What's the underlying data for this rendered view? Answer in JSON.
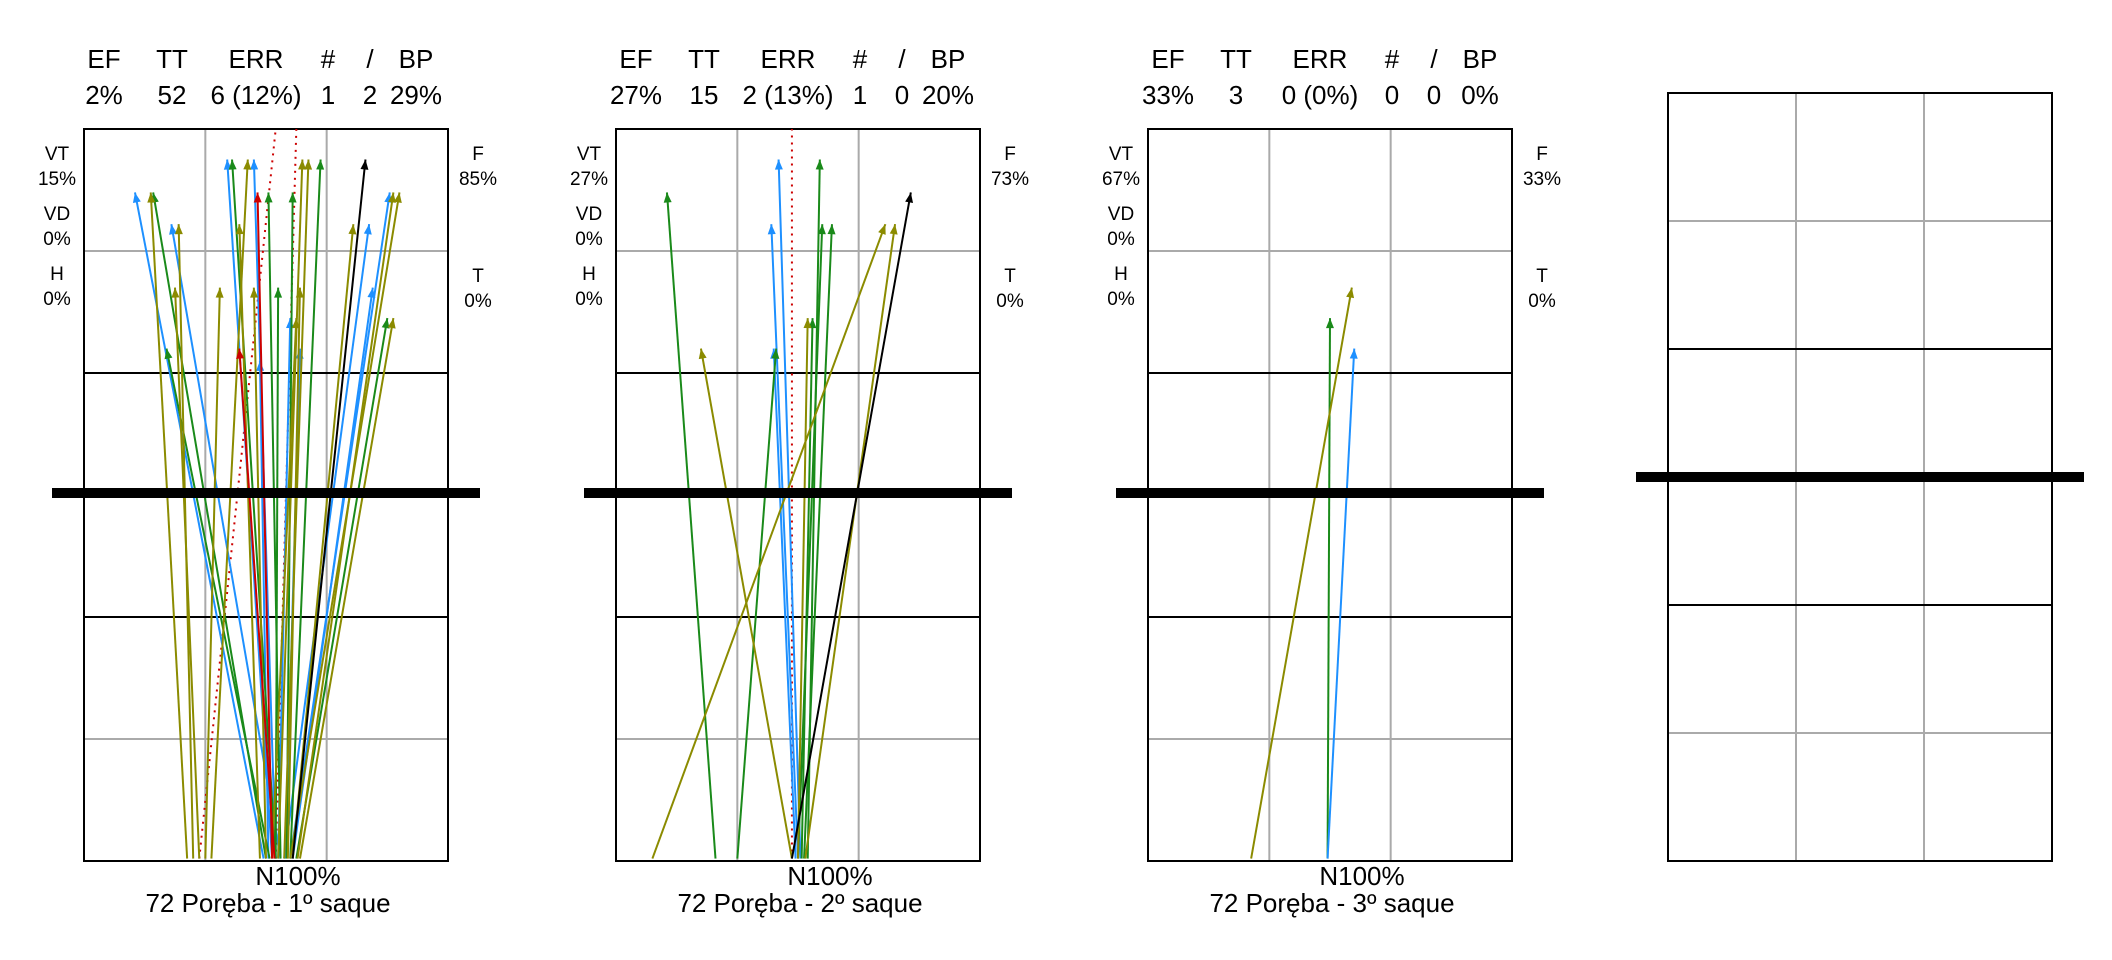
{
  "colors": {
    "blue": "#1e90ff",
    "green": "#1a8a1a",
    "olive": "#8b8b00",
    "black": "#000000",
    "red": "#cc0000",
    "grid": "#aaaaaa"
  },
  "header_labels": [
    "EF",
    "TT",
    "ERR",
    "#",
    "/",
    "BP"
  ],
  "side_labels": [
    "VT",
    "VD",
    "H",
    "F",
    "T"
  ],
  "chart_data": [
    {
      "type": "trajectory",
      "title": "72 Poręba  - 1º saque",
      "bottom_label": "N100%",
      "stats": {
        "EF": "2%",
        "TT": "52",
        "ERR": "6 (12%)",
        "#": "1",
        "/": "2",
        "BP": "29%"
      },
      "side": {
        "VT": "15%",
        "VD": "0%",
        "H": "0%",
        "F": "85%",
        "T": "0%"
      },
      "arrows": [
        {
          "c": "blue",
          "from": [
            1.48,
            5.98
          ],
          "to": [
            0.42,
            0.52
          ]
        },
        {
          "c": "blue",
          "from": [
            1.55,
            5.98
          ],
          "to": [
            1.18,
            0.25
          ]
        },
        {
          "c": "blue",
          "from": [
            1.58,
            5.98
          ],
          "to": [
            1.4,
            0.25
          ]
        },
        {
          "c": "blue",
          "from": [
            1.62,
            5.98
          ],
          "to": [
            0.72,
            0.78
          ]
        },
        {
          "c": "blue",
          "from": [
            1.65,
            5.98
          ],
          "to": [
            2.35,
            0.78
          ]
        },
        {
          "c": "blue",
          "from": [
            1.7,
            5.98
          ],
          "to": [
            2.52,
            0.52
          ]
        },
        {
          "c": "blue",
          "from": [
            1.72,
            5.98
          ],
          "to": [
            2.38,
            1.3
          ]
        },
        {
          "c": "blue",
          "from": [
            1.6,
            5.98
          ],
          "to": [
            1.7,
            1.55
          ]
        },
        {
          "c": "blue",
          "from": [
            1.66,
            5.98
          ],
          "to": [
            1.78,
            1.8
          ]
        },
        {
          "c": "blue",
          "from": [
            1.52,
            5.98
          ],
          "to": [
            1.45,
            1.9
          ]
        },
        {
          "c": "green",
          "from": [
            1.5,
            5.98
          ],
          "to": [
            0.57,
            0.52
          ]
        },
        {
          "c": "green",
          "from": [
            1.53,
            5.98
          ],
          "to": [
            0.68,
            1.8
          ]
        },
        {
          "c": "green",
          "from": [
            1.58,
            5.98
          ],
          "to": [
            1.22,
            0.25
          ]
        },
        {
          "c": "green",
          "from": [
            1.62,
            5.98
          ],
          "to": [
            1.52,
            0.52
          ]
        },
        {
          "c": "green",
          "from": [
            1.67,
            5.98
          ],
          "to": [
            1.72,
            0.52
          ]
        },
        {
          "c": "green",
          "from": [
            1.7,
            5.98
          ],
          "to": [
            1.95,
            0.25
          ]
        },
        {
          "c": "green",
          "from": [
            1.75,
            5.98
          ],
          "to": [
            2.5,
            1.55
          ]
        },
        {
          "c": "green",
          "from": [
            1.58,
            5.98
          ],
          "to": [
            1.6,
            1.3
          ]
        },
        {
          "c": "olive",
          "from": [
            0.85,
            5.98
          ],
          "to": [
            0.55,
            0.52
          ]
        },
        {
          "c": "olive",
          "from": [
            0.9,
            5.98
          ],
          "to": [
            0.78,
            0.78
          ]
        },
        {
          "c": "olive",
          "from": [
            0.95,
            5.98
          ],
          "to": [
            0.75,
            1.3
          ]
        },
        {
          "c": "olive",
          "from": [
            1.0,
            5.98
          ],
          "to": [
            1.12,
            1.3
          ]
        },
        {
          "c": "olive",
          "from": [
            1.05,
            5.98
          ],
          "to": [
            1.35,
            0.25
          ]
        },
        {
          "c": "olive",
          "from": [
            1.45,
            5.98
          ],
          "to": [
            1.28,
            0.78
          ]
        },
        {
          "c": "olive",
          "from": [
            1.5,
            5.98
          ],
          "to": [
            1.4,
            1.3
          ]
        },
        {
          "c": "olive",
          "from": [
            1.55,
            5.98
          ],
          "to": [
            1.75,
            1.55
          ]
        },
        {
          "c": "olive",
          "from": [
            1.6,
            5.98
          ],
          "to": [
            1.8,
            0.25
          ]
        },
        {
          "c": "olive",
          "from": [
            1.65,
            5.98
          ],
          "to": [
            1.85,
            0.25
          ]
        },
        {
          "c": "olive",
          "from": [
            1.68,
            5.98
          ],
          "to": [
            1.78,
            1.3
          ]
        },
        {
          "c": "olive",
          "from": [
            1.72,
            5.98
          ],
          "to": [
            2.22,
            0.78
          ]
        },
        {
          "c": "olive",
          "from": [
            1.76,
            5.98
          ],
          "to": [
            2.55,
            0.52
          ]
        },
        {
          "c": "olive",
          "from": [
            1.78,
            5.98
          ],
          "to": [
            2.55,
            1.55
          ]
        },
        {
          "c": "olive",
          "from": [
            1.7,
            5.98
          ],
          "to": [
            2.6,
            0.52
          ]
        },
        {
          "c": "red",
          "from": [
            1.55,
            5.98
          ],
          "to": [
            1.43,
            0.52
          ]
        },
        {
          "c": "red",
          "from": [
            1.57,
            5.98
          ],
          "to": [
            1.28,
            1.8
          ]
        },
        {
          "c": "black",
          "from": [
            1.72,
            5.98
          ],
          "to": [
            2.32,
            0.25
          ]
        }
      ],
      "dotted": [
        {
          "from": [
            0.95,
            5.98
          ],
          "to": [
            1.58,
            0.0
          ]
        },
        {
          "from": [
            1.58,
            5.98
          ],
          "to": [
            1.75,
            0.0
          ]
        }
      ]
    },
    {
      "type": "trajectory",
      "title": "72 Poręba  - 2º saque",
      "bottom_label": "N100%",
      "stats": {
        "EF": "27%",
        "TT": "15",
        "ERR": "2 (13%)",
        "#": "1",
        "/": "0",
        "BP": "20%"
      },
      "side": {
        "VT": "27%",
        "VD": "0%",
        "H": "0%",
        "F": "73%",
        "T": "0%"
      },
      "arrows": [
        {
          "c": "blue",
          "from": [
            1.52,
            5.98
          ],
          "to": [
            1.34,
            0.25
          ]
        },
        {
          "c": "blue",
          "from": [
            1.5,
            5.98
          ],
          "to": [
            1.28,
            0.78
          ]
        },
        {
          "c": "blue",
          "from": [
            1.48,
            5.98
          ],
          "to": [
            1.3,
            1.8
          ]
        },
        {
          "c": "green",
          "from": [
            0.82,
            5.98
          ],
          "to": [
            0.42,
            0.52
          ]
        },
        {
          "c": "green",
          "from": [
            1.0,
            5.98
          ],
          "to": [
            1.32,
            1.8
          ]
        },
        {
          "c": "green",
          "from": [
            1.5,
            5.98
          ],
          "to": [
            1.7,
            0.78
          ]
        },
        {
          "c": "green",
          "from": [
            1.55,
            5.98
          ],
          "to": [
            1.78,
            0.78
          ]
        },
        {
          "c": "green",
          "from": [
            1.58,
            5.98
          ],
          "to": [
            1.68,
            0.25
          ]
        },
        {
          "c": "green",
          "from": [
            1.53,
            5.98
          ],
          "to": [
            1.62,
            1.55
          ]
        },
        {
          "c": "olive",
          "from": [
            0.3,
            5.98
          ],
          "to": [
            2.22,
            0.78
          ]
        },
        {
          "c": "olive",
          "from": [
            1.45,
            5.98
          ],
          "to": [
            0.7,
            1.8
          ]
        },
        {
          "c": "olive",
          "from": [
            1.56,
            5.98
          ],
          "to": [
            2.3,
            0.78
          ]
        },
        {
          "c": "olive",
          "from": [
            1.5,
            5.98
          ],
          "to": [
            1.58,
            1.55
          ]
        },
        {
          "c": "black",
          "from": [
            1.45,
            5.98
          ],
          "to": [
            2.43,
            0.52
          ]
        }
      ],
      "dotted": [
        {
          "from": [
            1.45,
            5.98
          ],
          "to": [
            1.45,
            0.0
          ]
        }
      ]
    },
    {
      "type": "trajectory",
      "title": "72 Poręba  - 3º saque",
      "bottom_label": "N100%",
      "stats": {
        "EF": "33%",
        "TT": "3",
        "ERR": "0 (0%)",
        "#": "0",
        "/": "0",
        "BP": "0%"
      },
      "side": {
        "VT": "67%",
        "VD": "0%",
        "H": "0%",
        "F": "33%",
        "T": "0%"
      },
      "arrows": [
        {
          "c": "green",
          "from": [
            1.48,
            5.98
          ],
          "to": [
            1.5,
            1.55
          ]
        },
        {
          "c": "blue",
          "from": [
            1.48,
            5.98
          ],
          "to": [
            1.7,
            1.8
          ]
        },
        {
          "c": "olive",
          "from": [
            0.85,
            5.98
          ],
          "to": [
            1.68,
            1.3
          ]
        }
      ],
      "dotted": []
    }
  ]
}
